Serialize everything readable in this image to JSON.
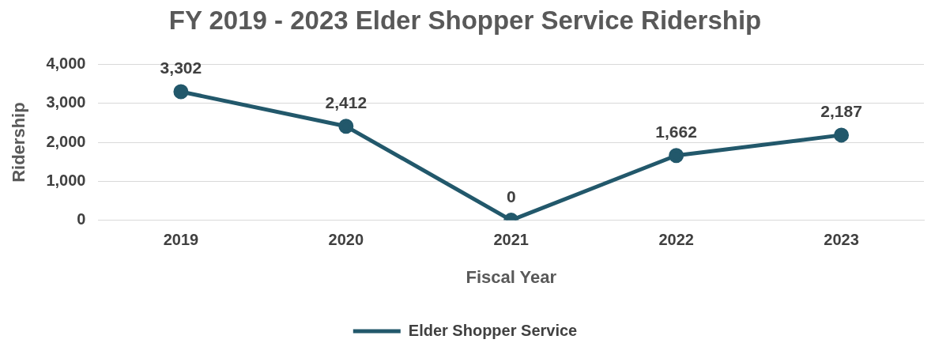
{
  "chart_data": {
    "type": "line",
    "title": "FY 2019 - 2023 Elder Shopper Service Ridership",
    "xlabel": "Fiscal Year",
    "ylabel": "Ridership",
    "categories": [
      "2019",
      "2020",
      "2021",
      "2022",
      "2023"
    ],
    "series": [
      {
        "name": "Elder Shopper Service",
        "color": "#22586b",
        "values": [
          3302,
          2412,
          0,
          1662,
          2187
        ],
        "value_labels": [
          "3,302",
          "2,412",
          "0",
          "1,662",
          "2,187"
        ]
      }
    ],
    "ylim": [
      0,
      4000
    ],
    "yticks": [
      {
        "value": 0,
        "label": "0"
      },
      {
        "value": 1000,
        "label": "1,000"
      },
      {
        "value": 2000,
        "label": "2,000"
      },
      {
        "value": 3000,
        "label": "3,000"
      },
      {
        "value": 4000,
        "label": "4,000"
      }
    ],
    "grid": "y",
    "legend": "bottom",
    "marker": "circle",
    "line_style": "solid"
  }
}
